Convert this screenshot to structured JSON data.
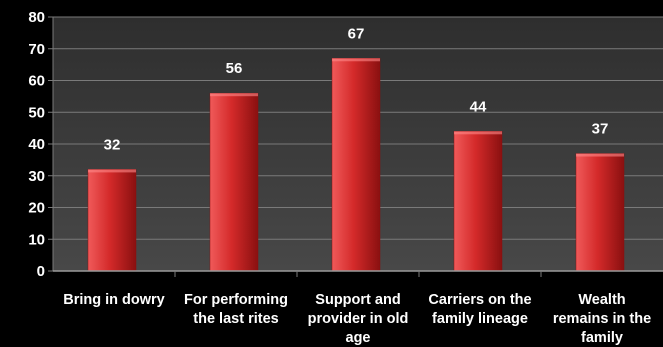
{
  "chart_data": {
    "type": "bar",
    "categories": [
      [
        "Bring in dowry"
      ],
      [
        "For performing",
        "the last rites"
      ],
      [
        "Support and",
        "provider in old",
        "age"
      ],
      [
        "Carriers on the",
        "family lineage"
      ],
      [
        "Wealth",
        "remains in the",
        "family"
      ]
    ],
    "values": [
      32,
      56,
      67,
      44,
      37
    ],
    "ylim": [
      0,
      80
    ],
    "yticks": [
      "0",
      "10",
      "20",
      "30",
      "40",
      "50",
      "60",
      "70",
      "80"
    ],
    "grid": true,
    "legend": "none",
    "colors": {
      "background": "#000000",
      "plot_background": "#3a3a3a",
      "bar_light": "#f05a5a",
      "bar_mid": "#d42a2a",
      "bar_dark": "#8a1010",
      "grid": "#7a7a7a",
      "text": "#ffffff"
    }
  }
}
